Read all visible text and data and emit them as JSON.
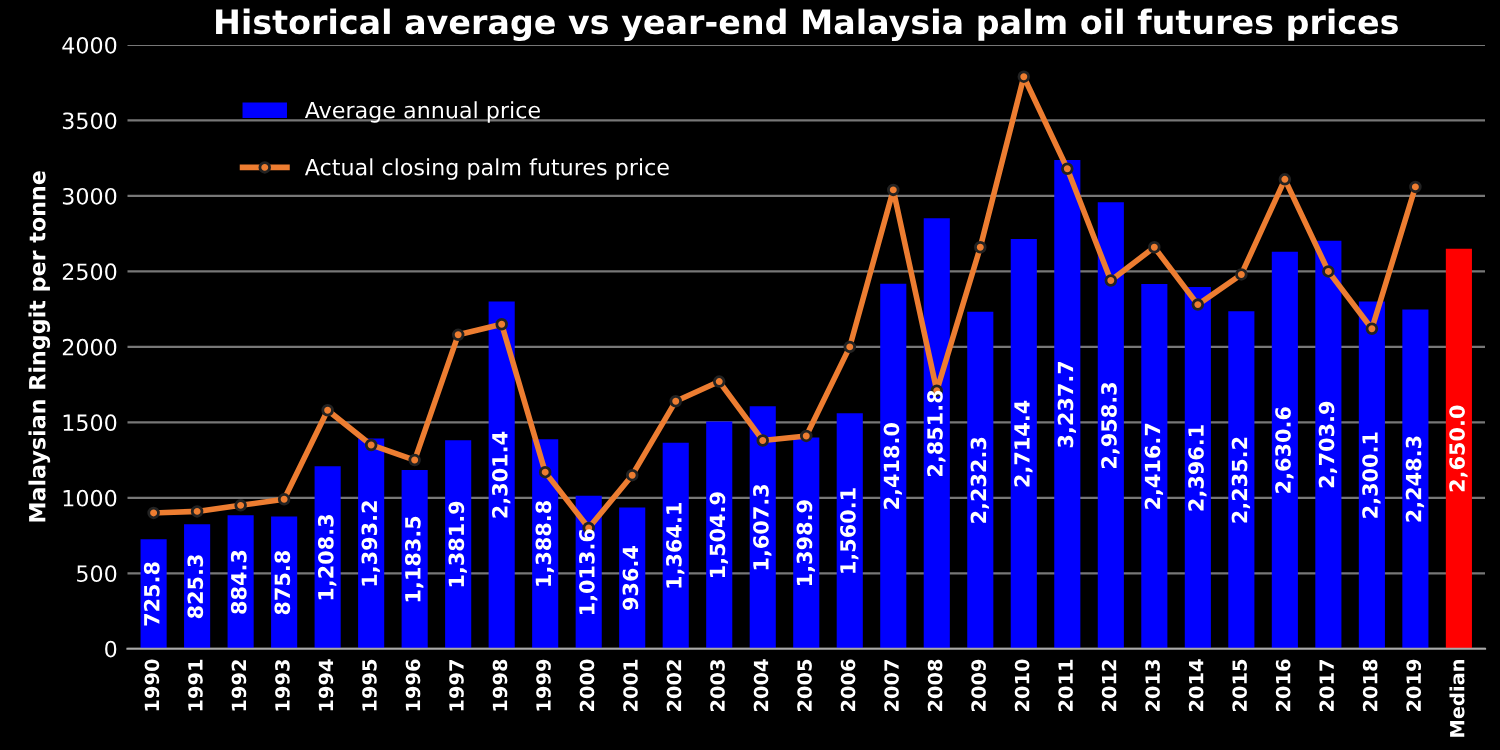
{
  "chart_data": {
    "type": "bar",
    "title": "Historical average vs year-end Malaysia palm oil futures prices",
    "ylabel": "Malaysian Ringgit per tonne",
    "categories": [
      "1990",
      "1991",
      "1992",
      "1993",
      "1994",
      "1995",
      "1996",
      "1997",
      "1998",
      "1999",
      "2000",
      "2001",
      "2002",
      "2003",
      "2004",
      "2005",
      "2006",
      "2007",
      "2008",
      "2009",
      "2010",
      "2011",
      "2012",
      "2013",
      "2014",
      "2015",
      "2016",
      "2017",
      "2018",
      "2019",
      "Median"
    ],
    "series": [
      {
        "name": "Average annual price",
        "color": "#0000ff",
        "colors": [
          "#0000ff",
          "#0000ff",
          "#0000ff",
          "#0000ff",
          "#0000ff",
          "#0000ff",
          "#0000ff",
          "#0000ff",
          "#0000ff",
          "#0000ff",
          "#0000ff",
          "#0000ff",
          "#0000ff",
          "#0000ff",
          "#0000ff",
          "#0000ff",
          "#0000ff",
          "#0000ff",
          "#0000ff",
          "#0000ff",
          "#0000ff",
          "#0000ff",
          "#0000ff",
          "#0000ff",
          "#0000ff",
          "#0000ff",
          "#0000ff",
          "#0000ff",
          "#0000ff",
          "#0000ff",
          "#ff0000"
        ],
        "values": [
          725.8,
          825.3,
          884.3,
          875.8,
          1208.3,
          1393.2,
          1183.5,
          1381.9,
          2301.4,
          1388.8,
          1013.6,
          936.4,
          1364.1,
          1504.9,
          1607.3,
          1398.9,
          1560.1,
          2418.0,
          2851.8,
          2232.3,
          2714.4,
          3237.7,
          2958.3,
          2416.7,
          2396.1,
          2235.2,
          2630.6,
          2703.9,
          2300.1,
          2248.3,
          2650.0
        ],
        "value_labels": [
          "725.8",
          "825.3",
          "884.3",
          "875.8",
          "1,208.3",
          "1,393.2",
          "1,183.5",
          "1,381.9",
          "2,301.4",
          "1,388.8",
          "1,013.6",
          "936.4",
          "1,364.1",
          "1,504.9",
          "1,607.3",
          "1,398.9",
          "1,560.1",
          "2,418.0",
          "2,851.8",
          "2,232.3",
          "2,714.4",
          "3,237.7",
          "2,958.3",
          "2,416.7",
          "2,396.1",
          "2,235.2",
          "2,630.6",
          "2,703.9",
          "2,300.1",
          "2,248.3",
          "2,650.0"
        ]
      },
      {
        "name": "Actual closing palm futures price",
        "type": "line",
        "color": "#ed7d31",
        "marker": "circle",
        "values": [
          900,
          910,
          950,
          990,
          1580,
          1350,
          1250,
          2080,
          2150,
          1170,
          800,
          1150,
          1640,
          1770,
          1380,
          1410,
          2000,
          3040,
          1710,
          2660,
          3790,
          3180,
          2440,
          2660,
          2280,
          2480,
          3110,
          2500,
          2120,
          3060,
          null
        ]
      }
    ],
    "ylim": [
      0,
      4000
    ],
    "yticks": [
      0,
      500,
      1000,
      1500,
      2000,
      2500,
      3000,
      3500,
      4000
    ],
    "grid": "y",
    "legend": "top left"
  }
}
